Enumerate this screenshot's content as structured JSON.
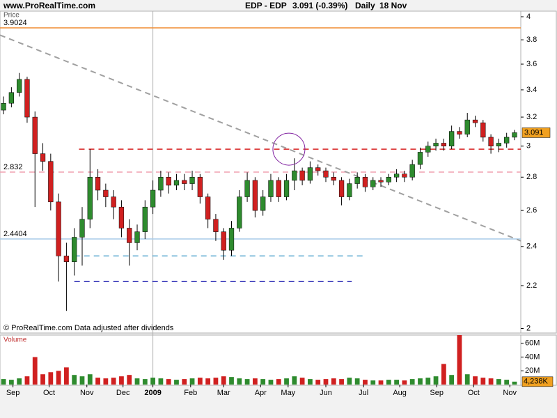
{
  "header": {
    "site": "www.ProRealTime.com",
    "symbol": "EDP - EDP",
    "last": "3.091 (-0.39%)",
    "period": "Daily",
    "date": "18 Nov"
  },
  "chart_data": {
    "type": "candlestick",
    "price_label": "Price",
    "footer": "© ProRealTime.com Data adjusted after dividends",
    "log_scale": true,
    "ylim": [
      1.98,
      4.05
    ],
    "yticks": [
      2,
      2.2,
      2.4,
      2.6,
      2.8,
      3,
      3.2,
      3.4,
      3.6,
      3.8,
      4
    ],
    "xlim": [
      -0.45,
      65.8
    ],
    "xticks": [
      {
        "value": 1.2,
        "label": "Sep"
      },
      {
        "value": 5.8,
        "label": "Oct"
      },
      {
        "value": 10.6,
        "label": "Nov"
      },
      {
        "value": 15.2,
        "label": "Dec"
      },
      {
        "value": 19.0,
        "label": "2009"
      },
      {
        "value": 23.8,
        "label": "Feb"
      },
      {
        "value": 28.0,
        "label": "Mar"
      },
      {
        "value": 32.7,
        "label": "Apr"
      },
      {
        "value": 36.2,
        "label": "May"
      },
      {
        "value": 41.0,
        "label": "Jun"
      },
      {
        "value": 45.8,
        "label": "Jul"
      },
      {
        "value": 50.4,
        "label": "Aug"
      },
      {
        "value": 55.1,
        "label": "Sep"
      },
      {
        "value": 59.8,
        "label": "Oct"
      },
      {
        "value": 64.4,
        "label": "Nov"
      }
    ],
    "year_separator": 19.0,
    "up_color": "#2e8b2e",
    "down_color": "#d02020",
    "series": [
      {
        "open": [
          3.25,
          3.3,
          3.38,
          3.48,
          3.2,
          2.95,
          2.9,
          2.65,
          2.35,
          2.32,
          2.45,
          2.55,
          2.8,
          2.72,
          2.68,
          2.62,
          2.5,
          2.42,
          2.48,
          2.62,
          2.72,
          2.8,
          2.75,
          2.78,
          2.76,
          2.8,
          2.68,
          2.55,
          2.48,
          2.38,
          2.5,
          2.68,
          2.78,
          2.6,
          2.68,
          2.78,
          2.68,
          2.78,
          2.84,
          2.78,
          2.86,
          2.84,
          2.8,
          2.78,
          2.68,
          2.76,
          2.8,
          2.74,
          2.78,
          2.77,
          2.8,
          2.82,
          2.8,
          2.88,
          2.96,
          3.0,
          3.02,
          3.0,
          3.1,
          3.08,
          3.18,
          3.16,
          3.06,
          3.0,
          3.02,
          3.06
        ],
        "high": [
          3.35,
          3.42,
          3.53,
          3.5,
          3.24,
          3.02,
          2.95,
          2.7,
          2.42,
          2.5,
          2.62,
          2.98,
          2.85,
          2.76,
          2.72,
          2.66,
          2.55,
          2.52,
          2.66,
          2.78,
          2.84,
          2.83,
          2.82,
          2.82,
          2.84,
          2.82,
          2.7,
          2.58,
          2.5,
          2.54,
          2.72,
          2.83,
          2.8,
          2.72,
          2.82,
          2.8,
          2.82,
          2.92,
          2.86,
          2.9,
          2.88,
          2.86,
          2.83,
          2.8,
          2.79,
          2.83,
          2.82,
          2.8,
          2.8,
          2.82,
          2.85,
          2.84,
          2.91,
          2.99,
          3.03,
          3.05,
          3.05,
          3.14,
          3.13,
          3.23,
          3.21,
          3.18,
          3.08,
          3.05,
          3.09,
          3.11
        ],
        "low": [
          3.22,
          3.27,
          3.35,
          3.16,
          2.62,
          2.84,
          2.6,
          2.22,
          2.08,
          2.25,
          2.3,
          2.5,
          2.66,
          2.62,
          2.55,
          2.45,
          2.3,
          2.38,
          2.44,
          2.58,
          2.68,
          2.7,
          2.72,
          2.72,
          2.72,
          2.64,
          2.5,
          2.43,
          2.33,
          2.35,
          2.48,
          2.65,
          2.56,
          2.57,
          2.65,
          2.65,
          2.66,
          2.72,
          2.75,
          2.76,
          2.81,
          2.77,
          2.75,
          2.63,
          2.66,
          2.73,
          2.71,
          2.72,
          2.74,
          2.75,
          2.77,
          2.77,
          2.78,
          2.85,
          2.93,
          2.97,
          2.97,
          2.98,
          3.05,
          3.06,
          3.13,
          3.03,
          2.95,
          2.96,
          2.99,
          3.04
        ],
        "close": [
          3.3,
          3.38,
          3.48,
          3.2,
          2.95,
          2.9,
          2.65,
          2.35,
          2.32,
          2.45,
          2.55,
          2.8,
          2.72,
          2.68,
          2.62,
          2.5,
          2.42,
          2.48,
          2.62,
          2.72,
          2.8,
          2.75,
          2.78,
          2.76,
          2.8,
          2.68,
          2.55,
          2.48,
          2.38,
          2.5,
          2.68,
          2.78,
          2.6,
          2.68,
          2.78,
          2.68,
          2.78,
          2.84,
          2.78,
          2.86,
          2.84,
          2.8,
          2.78,
          2.68,
          2.76,
          2.8,
          2.74,
          2.78,
          2.77,
          2.8,
          2.82,
          2.8,
          2.88,
          2.96,
          3.0,
          3.02,
          3.0,
          3.1,
          3.08,
          3.18,
          3.16,
          3.06,
          3.0,
          3.02,
          3.06,
          3.091
        ]
      }
    ],
    "levels": [
      {
        "value": 3.9024,
        "color": "#f08c30",
        "dashed": false,
        "from": -0.45,
        "to": 65.8,
        "show_label": true
      },
      {
        "value": 2.832,
        "color": "#f0a0b0",
        "dashed": true,
        "from": -0.45,
        "to": 65.8,
        "show_label": true
      },
      {
        "value": 2.4404,
        "color": "#a8cce8",
        "dashed": false,
        "from": -0.45,
        "to": 65.8,
        "show_label": true
      },
      {
        "value": 2.98,
        "color": "#d82020",
        "dashed": true,
        "from": 9.6,
        "to": 65.8,
        "show_label": false
      },
      {
        "value": 2.35,
        "color": "#58a8d0",
        "dashed": true,
        "from": 9.0,
        "to": 46.0,
        "show_label": false
      },
      {
        "value": 2.22,
        "color": "#2020b0",
        "dashed": true,
        "from": 9.0,
        "to": 44.3,
        "show_label": false
      }
    ],
    "trendline": {
      "x": [
        -0.45,
        65.8
      ],
      "y": [
        3.84,
        2.43
      ],
      "color": "#a0a0a0"
    },
    "circle": {
      "x": 36.3,
      "y": 2.98,
      "color": "#8020a0"
    },
    "volume": {
      "label": "Volume",
      "values": [
        8,
        7,
        9,
        12,
        40,
        15,
        18,
        20,
        25,
        14,
        12,
        15,
        10,
        9,
        10,
        12,
        14,
        9,
        8,
        10,
        9,
        8,
        7,
        8,
        9,
        10,
        9,
        10,
        12,
        11,
        9,
        8,
        9,
        8,
        7,
        8,
        9,
        12,
        10,
        8,
        7,
        8,
        9,
        8,
        10,
        9,
        7,
        6,
        6,
        7,
        7,
        6,
        8,
        9,
        10,
        12,
        30,
        14,
        72,
        15,
        12,
        10,
        9,
        8,
        7,
        4.238
      ],
      "last_label": "4,238K",
      "ylim": [
        0,
        72
      ],
      "yticks": [
        {
          "value": 20,
          "label": "20M"
        },
        {
          "value": 40,
          "label": "40M"
        },
        {
          "value": 60,
          "label": "60M"
        }
      ]
    }
  }
}
